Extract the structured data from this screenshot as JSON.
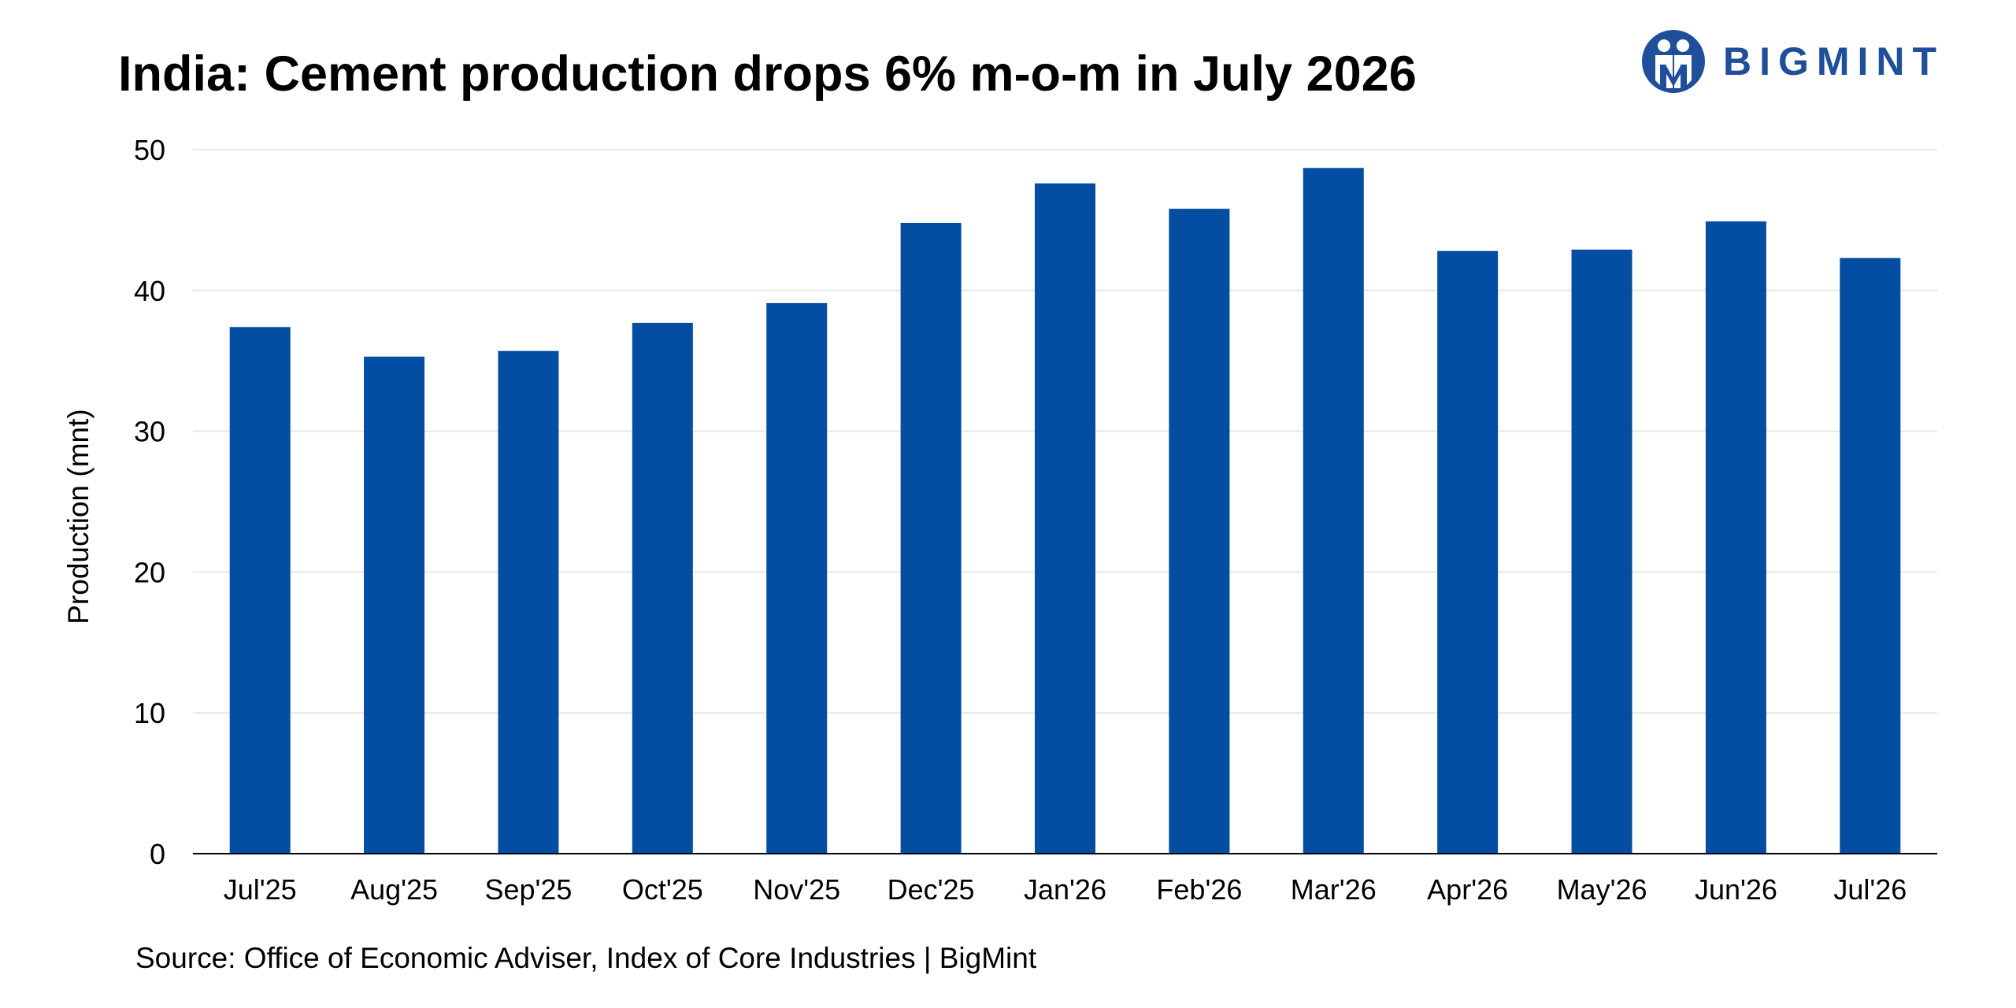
{
  "header": {
    "title": "India: Cement production drops 6% m-o-m in July 2026"
  },
  "logo": {
    "text": "BIGMINT",
    "icon": "bigmint-logo-icon",
    "color": "#1f4e9a"
  },
  "footer": {
    "source": "Source: Office of Economic Adviser, Index of Core Industries | BigMint"
  },
  "colors": {
    "bar": "#034ea2",
    "grid": "#e6e6e6",
    "axis": "#000000"
  },
  "chart_data": {
    "type": "bar",
    "title": "India: Cement production drops 6% m-o-m in July 2026",
    "xlabel": "",
    "ylabel": "Production (mnt)",
    "ylim": [
      0,
      50
    ],
    "yticks": [
      0,
      10,
      20,
      30,
      40,
      50
    ],
    "grid": "horizontal",
    "legend": "none",
    "categories": [
      "Jul'25",
      "Aug'25",
      "Sep'25",
      "Oct'25",
      "Nov'25",
      "Dec'25",
      "Jan'26",
      "Feb'26",
      "Mar'26",
      "Apr'26",
      "May'26",
      "Jun'26",
      "Jul'26"
    ],
    "values": [
      37.4,
      35.3,
      35.7,
      37.7,
      39.1,
      44.8,
      47.6,
      45.8,
      48.7,
      42.8,
      42.9,
      44.9,
      42.3
    ]
  }
}
